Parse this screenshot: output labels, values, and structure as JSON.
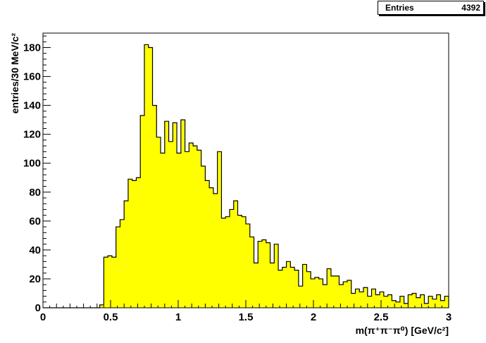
{
  "stats": {
    "label": "Entries",
    "value": "4392"
  },
  "chart_data": {
    "type": "histogram",
    "xlabel": "m(π⁺π⁻π⁰) [GeV/c²]",
    "ylabel": "entries/30 MeV/c²",
    "xlim": [
      0,
      3
    ],
    "ylim": [
      0,
      190
    ],
    "bin_width": 0.03,
    "x_start": 0,
    "xticks": [
      0,
      0.5,
      1,
      1.5,
      2,
      2.5,
      3
    ],
    "xtick_labels": [
      "0",
      "0.5",
      "1",
      "1.5",
      "2",
      "2.5",
      "3"
    ],
    "yticks": [
      0,
      20,
      40,
      60,
      80,
      100,
      120,
      140,
      160,
      180
    ],
    "fill_color": "#ffff00",
    "line_color": "#000000",
    "values": [
      0,
      0,
      0,
      0,
      0,
      0,
      0,
      0,
      0,
      0,
      0,
      0,
      0,
      0,
      2,
      35,
      36,
      35,
      56,
      61,
      74,
      89,
      88,
      90,
      133,
      182,
      180,
      140,
      118,
      107,
      129,
      115,
      128,
      107,
      130,
      108,
      114,
      112,
      109,
      98,
      88,
      83,
      79,
      108,
      62,
      63,
      68,
      74,
      64,
      63,
      58,
      49,
      31,
      46,
      47,
      45,
      31,
      44,
      26,
      28,
      32,
      28,
      26,
      15,
      30,
      25,
      20,
      21,
      20,
      16,
      27,
      22,
      22,
      16,
      18,
      19,
      10,
      13,
      11,
      14,
      8,
      13,
      9,
      11,
      8,
      9,
      5,
      4,
      8,
      3,
      9,
      10,
      7,
      9,
      3,
      8,
      6,
      9,
      5,
      8
    ]
  }
}
